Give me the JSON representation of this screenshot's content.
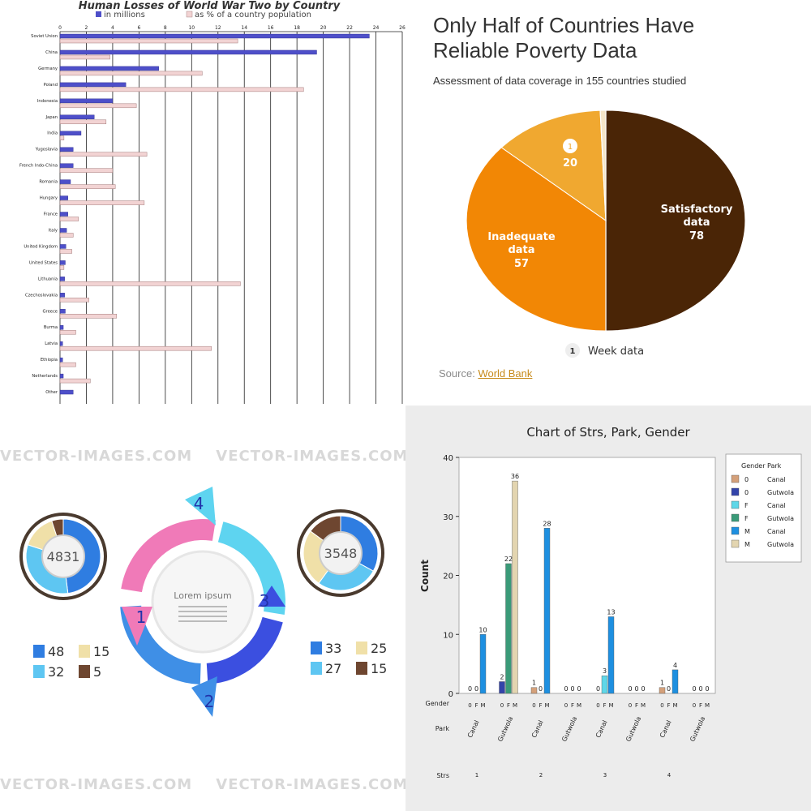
{
  "chart_data": [
    {
      "type": "bar",
      "title": "Human Losses of World War Two by Country",
      "orientation": "horizontal",
      "xlim": [
        0,
        26
      ],
      "ticks": [
        0,
        2,
        4,
        6,
        8,
        10,
        12,
        14,
        16,
        18,
        20,
        22,
        24,
        26
      ],
      "legend": [
        "in millions",
        "as % of a country population"
      ],
      "categories": [
        "Soviet Union",
        "China",
        "Germany",
        "Poland",
        "Indonesia",
        "Japan",
        "India",
        "Yugoslavia",
        "French Indo-China",
        "Romania",
        "Hungary",
        "France",
        "Italy",
        "United Kingdom",
        "United States",
        "Lithuania",
        "Czechoslovakia",
        "Greece",
        "Burma",
        "Latvia",
        "Ethiopia",
        "Netherlands",
        "Other"
      ],
      "series": [
        {
          "name": "in millions",
          "color": "#4e4fc9",
          "values": [
            23.5,
            19.5,
            7.5,
            5,
            4,
            2.6,
            1.6,
            1,
            1,
            0.8,
            0.6,
            0.6,
            0.5,
            0.45,
            0.4,
            0.35,
            0.35,
            0.4,
            0.25,
            0.2,
            0.2,
            0.25,
            1
          ]
        },
        {
          "name": "as % of a country population",
          "color": "#f2d3d3",
          "values": [
            13.5,
            3.8,
            10.8,
            18.5,
            5.8,
            3.5,
            0.3,
            6.6,
            4,
            4.2,
            6.4,
            1.4,
            1,
            0.9,
            0.3,
            13.7,
            2.2,
            4.3,
            1.2,
            11.5,
            1.2,
            2.3,
            0
          ]
        }
      ]
    },
    {
      "type": "pie",
      "title": "Only Half of Countries Have Reliable Poverty Data",
      "subtitle": "Assessment of data coverage in 155 countries studied",
      "slices": [
        {
          "label": "Satisfactory data",
          "value": 78,
          "color": "#4a2506"
        },
        {
          "label": "Inadequate data",
          "value": 57,
          "color": "#f28705"
        },
        {
          "label": "",
          "value": 20,
          "color": "#f0a830"
        },
        {
          "label": "Week data",
          "value": 1,
          "color": "#f5e6c8"
        }
      ],
      "source_label": "Source:",
      "source_link": "World Bank"
    },
    {
      "type": "pie",
      "title": "",
      "center_value": "4831",
      "slices": [
        {
          "value": 48,
          "color": "#2f7de1"
        },
        {
          "value": 32,
          "color": "#5ec6f2"
        },
        {
          "value": 15,
          "color": "#f0e0a8"
        },
        {
          "value": 5,
          "color": "#6e4630"
        }
      ]
    },
    {
      "type": "pie",
      "title": "",
      "center_value": "3548",
      "slices": [
        {
          "value": 33,
          "color": "#2f7de1"
        },
        {
          "value": 27,
          "color": "#5ec6f2"
        },
        {
          "value": 25,
          "color": "#f0e0a8"
        },
        {
          "value": 15,
          "color": "#6e4630"
        }
      ]
    },
    {
      "type": "bar",
      "title": "Chart of Strs, Park, Gender",
      "ylabel": "Count",
      "ylim": [
        0,
        40
      ],
      "yticks": [
        0,
        10,
        20,
        30,
        40
      ],
      "x_levels": [
        "Gender",
        "Park",
        "Strs"
      ],
      "gender_labels": [
        "0",
        "F",
        "M"
      ],
      "legend_header": [
        "Gender",
        "Park"
      ],
      "legend": [
        {
          "gender": "0",
          "park": "Canal",
          "color": "#d4a07a"
        },
        {
          "gender": "0",
          "park": "Gutwola",
          "color": "#3344aa"
        },
        {
          "gender": "F",
          "park": "Canal",
          "color": "#5fd7e8"
        },
        {
          "gender": "F",
          "park": "Gutwola",
          "color": "#3a9a78"
        },
        {
          "gender": "M",
          "park": "Canal",
          "color": "#1e8fe0"
        },
        {
          "gender": "M",
          "park": "Gutwola",
          "color": "#e3d5b0"
        }
      ],
      "groups": [
        {
          "strs": "1",
          "park": "Canal",
          "values": [
            0,
            0,
            10
          ]
        },
        {
          "strs": "1",
          "park": "Gutwola",
          "values": [
            2,
            22,
            36
          ]
        },
        {
          "strs": "2",
          "park": "Canal",
          "values": [
            1,
            0,
            28
          ]
        },
        {
          "strs": "2",
          "park": "Gutwola",
          "values": [
            0,
            0,
            0
          ]
        },
        {
          "strs": "3",
          "park": "Canal",
          "values": [
            0,
            3,
            13
          ]
        },
        {
          "strs": "3",
          "park": "Gutwola",
          "values": [
            0,
            0,
            0
          ]
        },
        {
          "strs": "4",
          "park": "Canal",
          "values": [
            1,
            0,
            4
          ]
        },
        {
          "strs": "4",
          "park": "Gutwola",
          "values": [
            0,
            0,
            0
          ]
        }
      ]
    }
  ],
  "infographic": {
    "watermark": "VECTOR-IMAGES.COM",
    "center_title": "Lorem ipsum",
    "steps": [
      "1",
      "2",
      "3",
      "4"
    ]
  }
}
